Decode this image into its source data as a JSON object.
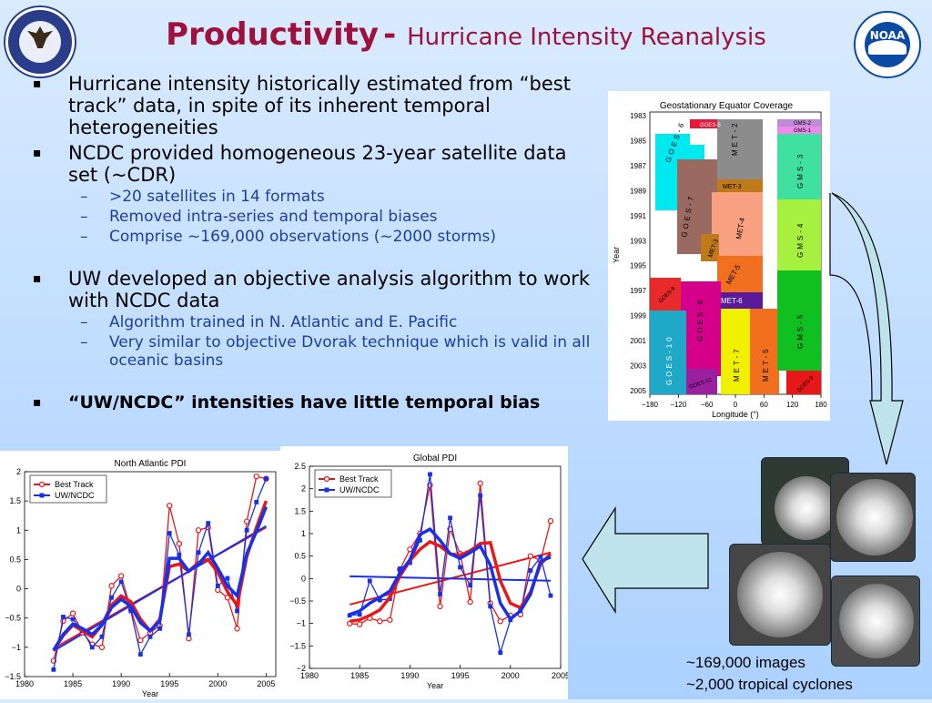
{
  "title": {
    "main": "Productivity",
    "sub": "Hurricane Intensity Reanalysis"
  },
  "bullets": [
    {
      "text": "Hurricane intensity historically estimated from “best track” data, in spite of its inherent temporal heterogeneities",
      "subs": []
    },
    {
      "text": "NCDC provided homogeneous 23-year satellite data set (~CDR)",
      "subs": [
        ">20 satellites in 14 formats",
        "Removed intra-series and temporal biases",
        "Comprise ~169,000 observations (~2000 storms)"
      ]
    },
    {
      "text": "UW developed an objective analysis algorithm to work with NCDC data",
      "subs": [
        "Algorithm trained in N. Atlantic and E. Pacific",
        "Very similar to objective Dvorak technique which is valid in all oceanic basins"
      ]
    },
    {
      "text": "“UW/NCDC” intensities have little temporal bias",
      "subs": []
    }
  ],
  "coverage_chart": {
    "title": "Geostationary Equator Coverage",
    "xlabel": "Longitude (°)",
    "ylabel": "Year",
    "x_ticks": [
      "−180",
      "−120",
      "−60",
      "0",
      "60",
      "120",
      "180"
    ],
    "y_ticks": [
      "1983",
      "1985",
      "1987",
      "1989",
      "1991",
      "1993",
      "1995",
      "1997",
      "1999",
      "2001",
      "2003",
      "2005"
    ],
    "satellites": [
      {
        "name": "GOES-5",
        "color": "#e8183c"
      },
      {
        "name": "GOES-6",
        "color": "#00e8f0"
      },
      {
        "name": "GOES-7",
        "color": "#9a6a60"
      },
      {
        "name": "GOES-8",
        "color": "#d4008c"
      },
      {
        "name": "GOES-9",
        "color": "#e82a2a"
      },
      {
        "name": "GOES-10",
        "color": "#1fa8c8"
      },
      {
        "name": "GOES-12",
        "color": "#9a20a0"
      },
      {
        "name": "MET-2",
        "color": "#8c8c8c"
      },
      {
        "name": "MET-3",
        "color": "#c07a1a"
      },
      {
        "name": "MET-4",
        "color": "#f8a080"
      },
      {
        "name": "MET-5",
        "color": "#f07020"
      },
      {
        "name": "MET-6",
        "color": "#5a1a9a"
      },
      {
        "name": "MET-7",
        "color": "#f0f000"
      },
      {
        "name": "GMS-1",
        "color": "#ee88ee"
      },
      {
        "name": "GMS-2",
        "color": "#c08ad8"
      },
      {
        "name": "GMS-3",
        "color": "#40e0a0"
      },
      {
        "name": "GMS-4",
        "color": "#a8f040"
      },
      {
        "name": "GMS-5",
        "color": "#10c020"
      },
      {
        "name": "GOES-9",
        "color": "#e81818"
      }
    ]
  },
  "chart_data": [
    {
      "type": "line",
      "title": "North Atlantic PDI",
      "xlabel": "Year",
      "ylabel": "",
      "xlim": [
        1980,
        2006
      ],
      "ylim": [
        -1.5,
        2
      ],
      "x_ticks": [
        "1980",
        "1985",
        "1990",
        "1995",
        "2000",
        "2005"
      ],
      "y_ticks": [
        "2",
        "1.5",
        "1",
        "0.5",
        "0",
        "−0.5",
        "−1",
        "−1.5"
      ],
      "legend": [
        "Best Track",
        "UW/NCDC"
      ],
      "legend_position": "top-left",
      "x": [
        1983,
        1984,
        1985,
        1986,
        1987,
        1988,
        1989,
        1990,
        1991,
        1992,
        1993,
        1994,
        1995,
        1996,
        1997,
        1998,
        1999,
        2000,
        2001,
        2002,
        2003,
        2004,
        2005
      ],
      "series": [
        {
          "name": "Best Track",
          "color": "#e81818",
          "values": [
            -1.23,
            -0.55,
            -0.42,
            -0.75,
            -0.95,
            -1.0,
            0.05,
            0.22,
            -0.35,
            -0.88,
            -0.75,
            -0.63,
            1.42,
            0.77,
            -0.85,
            1.0,
            1.05,
            -0.02,
            -0.15,
            -0.68,
            1.15,
            1.92,
            1.88
          ]
        },
        {
          "name": "UW/NCDC",
          "color": "#1830e8",
          "values": [
            -1.38,
            -0.48,
            -0.52,
            -0.72,
            -1.0,
            -0.82,
            -0.15,
            0.12,
            -0.38,
            -1.12,
            -0.82,
            -0.68,
            0.95,
            0.58,
            -0.78,
            0.62,
            1.12,
            0.05,
            0.18,
            -0.38,
            1.0,
            1.48,
            1.88
          ]
        },
        {
          "name": "Best Track (smoothed)",
          "color": "#e81818",
          "values": [
            -1.05,
            -0.8,
            -0.62,
            -0.72,
            -0.82,
            -0.62,
            -0.28,
            -0.12,
            -0.22,
            -0.52,
            -0.72,
            -0.52,
            0.38,
            0.42,
            0.3,
            0.45,
            0.5,
            0.28,
            -0.05,
            -0.28,
            0.55,
            1.05,
            1.5
          ]
        },
        {
          "name": "UW/NCDC (smoothed)",
          "color": "#1830e8",
          "values": [
            -1.05,
            -0.78,
            -0.6,
            -0.68,
            -0.78,
            -0.62,
            -0.32,
            -0.18,
            -0.3,
            -0.58,
            -0.72,
            -0.55,
            0.52,
            0.52,
            0.3,
            0.42,
            0.62,
            0.35,
            0.05,
            -0.12,
            0.6,
            0.98,
            1.4
          ]
        }
      ],
      "trend_lines": [
        {
          "name": "Best Track trend",
          "color": "#e81818",
          "x": [
            1983,
            2005
          ],
          "y": [
            -1.02,
            1.05
          ]
        },
        {
          "name": "UW/NCDC trend",
          "color": "#1830e8",
          "x": [
            1983,
            2005
          ],
          "y": [
            -1.06,
            1.07
          ]
        }
      ]
    },
    {
      "type": "line",
      "title": "Global PDI",
      "xlabel": "Year",
      "ylabel": "",
      "xlim": [
        1980,
        2005
      ],
      "ylim": [
        -2,
        2.5
      ],
      "x_ticks": [
        "1980",
        "1985",
        "1990",
        "1995",
        "2000",
        "2005"
      ],
      "y_ticks": [
        "2.5",
        "2",
        "1.5",
        "1",
        "0.5",
        "0",
        "−0.5",
        "−1",
        "−1.5",
        "−2"
      ],
      "legend": [
        "Best Track",
        "UW/NCDC"
      ],
      "legend_position": "top-left",
      "x": [
        1984,
        1985,
        1986,
        1987,
        1988,
        1989,
        1990,
        1991,
        1992,
        1993,
        1994,
        1995,
        1996,
        1997,
        1998,
        1999,
        2000,
        2001,
        2002,
        2003,
        2004
      ],
      "series": [
        {
          "name": "Best Track",
          "color": "#e81818",
          "values": [
            -1.0,
            -1.02,
            -0.88,
            -0.95,
            -0.92,
            0.2,
            0.65,
            1.0,
            2.08,
            -0.62,
            1.1,
            0.55,
            -0.52,
            2.12,
            -0.55,
            -0.95,
            -0.82,
            -0.8,
            0.5,
            0.4,
            1.28
          ]
        },
        {
          "name": "UW/NCDC",
          "color": "#1830e8",
          "values": [
            -0.82,
            -0.8,
            -0.05,
            -0.48,
            -0.45,
            0.22,
            0.35,
            0.85,
            2.32,
            -0.35,
            1.35,
            0.25,
            -0.15,
            1.85,
            -0.62,
            -1.65,
            -0.92,
            -0.72,
            0.18,
            0.48,
            -0.38
          ]
        },
        {
          "name": "Best Track (smoothed)",
          "color": "#e81818",
          "values": [
            -0.95,
            -0.92,
            -0.82,
            -0.7,
            -0.42,
            0.05,
            0.4,
            0.65,
            0.82,
            0.72,
            0.55,
            0.52,
            0.62,
            0.78,
            0.8,
            -0.05,
            -0.55,
            -0.65,
            -0.3,
            0.32,
            0.55
          ]
        },
        {
          "name": "UW/NCDC (smoothed)",
          "color": "#1830e8",
          "values": [
            -0.8,
            -0.72,
            -0.55,
            -0.42,
            -0.28,
            0.12,
            0.42,
            0.98,
            1.1,
            0.85,
            0.55,
            0.45,
            0.58,
            0.72,
            0.3,
            -0.55,
            -0.9,
            -0.72,
            -0.35,
            0.38,
            0.48
          ]
        }
      ],
      "trend_lines": [
        {
          "name": "Best Track trend",
          "color": "#e81818",
          "x": [
            1984,
            2004
          ],
          "y": [
            -0.58,
            0.58
          ]
        },
        {
          "name": "UW/NCDC trend",
          "color": "#1830e8",
          "x": [
            1984,
            2004
          ],
          "y": [
            0.05,
            -0.05
          ]
        }
      ]
    }
  ],
  "images_caption": {
    "line1": "~169,000 images",
    "line2": "~2,000 tropical cyclones"
  },
  "image_icons": [
    "hurricane-image-1",
    "hurricane-image-2",
    "hurricane-image-3",
    "hurricane-image-4"
  ],
  "colors": {
    "title": "#a0103c",
    "subbullet": "#1f3fa0",
    "arrow_fill": "#bfe3ea"
  }
}
